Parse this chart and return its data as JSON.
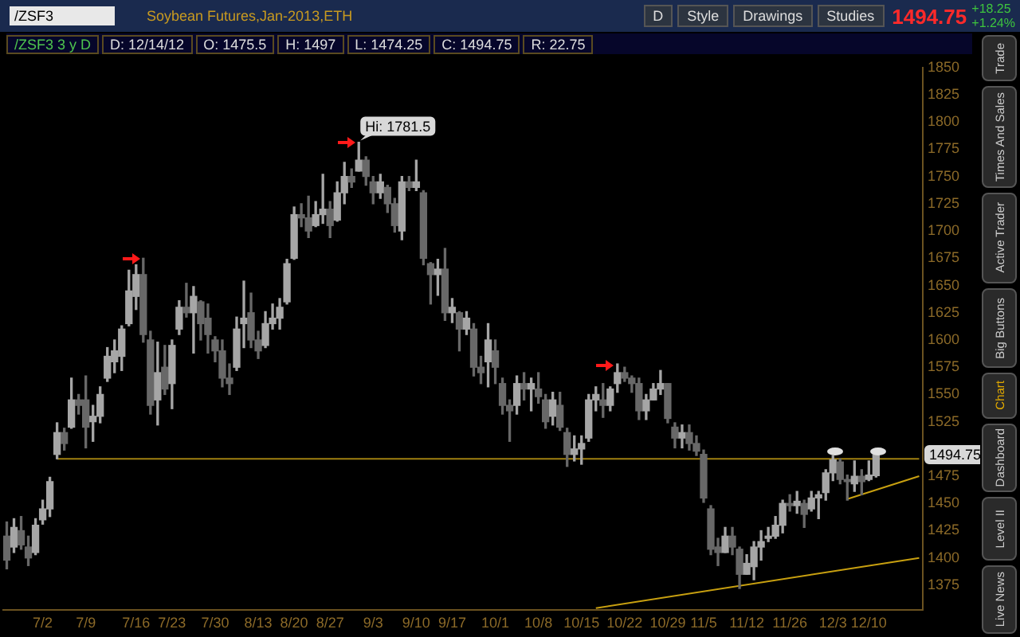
{
  "chart_data": {
    "type": "candlestick",
    "title": "Soybean Futures,Jan-2013,ETH",
    "categories": [
      null,
      null,
      null,
      null,
      null,
      "7/2",
      null,
      null,
      null,
      null,
      null,
      "7/9",
      null,
      null,
      null,
      null,
      null,
      null,
      "7/16",
      null,
      null,
      null,
      null,
      "7/23",
      null,
      null,
      null,
      null,
      null,
      "7/30",
      null,
      null,
      null,
      null,
      null,
      "8/13",
      null,
      null,
      null,
      null,
      "8/20",
      null,
      null,
      null,
      null,
      "8/27",
      null,
      null,
      null,
      null,
      null,
      "9/3",
      null,
      null,
      null,
      null,
      null,
      "9/10",
      null,
      null,
      null,
      null,
      "9/17",
      null,
      null,
      null,
      null,
      null,
      "10/1",
      null,
      null,
      null,
      null,
      null,
      "10/8",
      null,
      null,
      null,
      null,
      null,
      "10/15",
      null,
      null,
      null,
      null,
      null,
      "10/22",
      null,
      null,
      null,
      null,
      null,
      "10/29",
      null,
      null,
      null,
      null,
      "11/5",
      null,
      null,
      null,
      null,
      null,
      "11/12",
      null,
      null,
      null,
      null,
      null,
      "11/26",
      null,
      null,
      null,
      null,
      null,
      "12/3",
      null,
      null,
      null,
      null,
      "12/10",
      null,
      null,
      null,
      null,
      null,
      null,
      null
    ],
    "ohlc": [
      [
        1420,
        1433,
        1390,
        1398
      ],
      [
        1410,
        1436,
        1405,
        1428
      ],
      [
        1425,
        1438,
        1408,
        1412
      ],
      [
        1410,
        1420,
        1393,
        1400
      ],
      [
        1405,
        1436,
        1403,
        1430
      ],
      [
        1435,
        1453,
        1431,
        1445
      ],
      [
        1445,
        1474,
        1438,
        1470
      ],
      [
        1495,
        1524,
        1491,
        1515
      ],
      [
        1515,
        1519,
        1499,
        1505
      ],
      [
        1520,
        1565,
        1519,
        1545
      ],
      [
        1545,
        1550,
        1532,
        1540
      ],
      [
        1545,
        1567,
        1501,
        1520
      ],
      [
        1525,
        1540,
        1507,
        1530
      ],
      [
        1530,
        1557,
        1524,
        1550
      ],
      [
        1565,
        1593,
        1562,
        1585
      ],
      [
        1580,
        1600,
        1570,
        1590
      ],
      [
        1585,
        1613,
        1572,
        1610
      ],
      [
        1615,
        1664,
        1613,
        1645
      ],
      [
        1640,
        1669,
        1628,
        1660
      ],
      [
        1660,
        1675,
        1598,
        1605
      ],
      [
        1600,
        1608,
        1532,
        1540
      ],
      [
        1545,
        1598,
        1522,
        1570
      ],
      [
        1575,
        1595,
        1550,
        1555
      ],
      [
        1560,
        1600,
        1537,
        1595
      ],
      [
        1610,
        1636,
        1605,
        1630
      ],
      [
        1630,
        1652,
        1621,
        1625
      ],
      [
        1625,
        1649,
        1588,
        1640
      ],
      [
        1635,
        1636,
        1600,
        1615
      ],
      [
        1620,
        1633,
        1588,
        1605
      ],
      [
        1600,
        1603,
        1580,
        1590
      ],
      [
        1590,
        1600,
        1557,
        1565
      ],
      [
        1565,
        1578,
        1550,
        1560
      ],
      [
        1575,
        1621,
        1572,
        1610
      ],
      [
        1615,
        1654,
        1593,
        1620
      ],
      [
        1625,
        1643,
        1593,
        1600
      ],
      [
        1600,
        1608,
        1583,
        1590
      ],
      [
        1595,
        1626,
        1593,
        1615
      ],
      [
        1615,
        1633,
        1610,
        1620
      ],
      [
        1620,
        1638,
        1610,
        1630
      ],
      [
        1635,
        1674,
        1633,
        1670
      ],
      [
        1675,
        1722,
        1674,
        1715
      ],
      [
        1715,
        1725,
        1704,
        1712
      ],
      [
        1712,
        1732,
        1694,
        1700
      ],
      [
        1705,
        1727,
        1704,
        1715
      ],
      [
        1715,
        1752,
        1707,
        1720
      ],
      [
        1720,
        1727,
        1694,
        1705
      ],
      [
        1710,
        1745,
        1709,
        1735
      ],
      [
        1735,
        1763,
        1725,
        1750
      ],
      [
        1750,
        1757,
        1740,
        1745
      ],
      [
        1755,
        1781.5,
        1755,
        1765
      ],
      [
        1765,
        1768,
        1742,
        1750
      ],
      [
        1745,
        1750,
        1725,
        1735
      ],
      [
        1735,
        1752,
        1730,
        1745
      ],
      [
        1740,
        1742,
        1717,
        1725
      ],
      [
        1725,
        1730,
        1699,
        1705
      ],
      [
        1700,
        1750,
        1692,
        1745
      ],
      [
        1745,
        1750,
        1737,
        1740
      ],
      [
        1740,
        1765,
        1737,
        1745
      ],
      [
        1735,
        1737,
        1669,
        1675
      ],
      [
        1670,
        1671,
        1633,
        1660
      ],
      [
        1660,
        1674,
        1641,
        1665
      ],
      [
        1665,
        1684,
        1618,
        1625
      ],
      [
        1625,
        1638,
        1616,
        1630
      ],
      [
        1625,
        1626,
        1590,
        1610
      ],
      [
        1610,
        1626,
        1605,
        1620
      ],
      [
        1610,
        1615,
        1567,
        1575
      ],
      [
        1575,
        1585,
        1560,
        1570
      ],
      [
        1580,
        1615,
        1557,
        1600
      ],
      [
        1590,
        1600,
        1560,
        1575
      ],
      [
        1560,
        1565,
        1532,
        1540
      ],
      [
        1540,
        1545,
        1507,
        1535
      ],
      [
        1540,
        1567,
        1532,
        1560
      ],
      [
        1560,
        1570,
        1545,
        1555
      ],
      [
        1555,
        1565,
        1535,
        1560
      ],
      [
        1555,
        1570,
        1542,
        1548
      ],
      [
        1545,
        1550,
        1519,
        1525
      ],
      [
        1530,
        1552,
        1522,
        1545
      ],
      [
        1540,
        1552,
        1517,
        1520
      ],
      [
        1515,
        1519,
        1484,
        1495
      ],
      [
        1495,
        1512,
        1489,
        1500
      ],
      [
        1500,
        1512,
        1486,
        1505
      ],
      [
        1510,
        1550,
        1507,
        1545
      ],
      [
        1545,
        1557,
        1535,
        1550
      ],
      [
        1545,
        1560,
        1529,
        1540
      ],
      [
        1540,
        1557,
        1535,
        1555
      ],
      [
        1560,
        1578,
        1552,
        1570
      ],
      [
        1570,
        1575,
        1562,
        1565
      ],
      [
        1565,
        1567,
        1552,
        1560
      ],
      [
        1560,
        1565,
        1527,
        1535
      ],
      [
        1535,
        1550,
        1527,
        1545
      ],
      [
        1545,
        1560,
        1545,
        1555
      ],
      [
        1555,
        1572,
        1550,
        1560
      ],
      [
        1560,
        1560,
        1524,
        1528
      ],
      [
        1520,
        1524,
        1501,
        1510
      ],
      [
        1510,
        1522,
        1501,
        1515
      ],
      [
        1515,
        1522,
        1499,
        1505
      ],
      [
        1505,
        1512,
        1494,
        1498
      ],
      [
        1495,
        1499,
        1451,
        1455
      ],
      [
        1445,
        1448,
        1403,
        1408
      ],
      [
        1410,
        1418,
        1393,
        1405
      ],
      [
        1405,
        1428,
        1405,
        1420
      ],
      [
        1420,
        1428,
        1403,
        1410
      ],
      [
        1408,
        1410,
        1372,
        1385
      ],
      [
        1385,
        1403,
        1385,
        1395
      ],
      [
        1392,
        1415,
        1380,
        1410
      ],
      [
        1410,
        1425,
        1398,
        1415
      ],
      [
        1418,
        1428,
        1415,
        1420
      ],
      [
        1420,
        1438,
        1418,
        1430
      ],
      [
        1430,
        1453,
        1423,
        1450
      ],
      [
        1450,
        1458,
        1443,
        1448
      ],
      [
        1448,
        1461,
        1441,
        1452
      ],
      [
        1450,
        1453,
        1428,
        1440
      ],
      [
        1445,
        1461,
        1443,
        1455
      ],
      [
        1455,
        1461,
        1436,
        1458
      ],
      [
        1460,
        1481,
        1453,
        1478
      ],
      [
        1478,
        1494,
        1471,
        1490
      ],
      [
        1488,
        1491,
        1468,
        1472
      ],
      [
        1472,
        1476,
        1453,
        1470
      ],
      [
        1468,
        1489,
        1461,
        1475
      ],
      [
        1475,
        1481,
        1458,
        1470
      ],
      [
        1472,
        1489,
        1471,
        1476
      ],
      [
        1475.5,
        1497,
        1474.25,
        1494.75
      ],
      null,
      null,
      null,
      null,
      null,
      null
    ],
    "series": [
      {
        "type": "line",
        "color": "#a08010",
        "values": [
          null,
          null,
          null,
          null,
          null,
          null,
          null,
          1491,
          null,
          null,
          null,
          null,
          null,
          null,
          null,
          null,
          null,
          null,
          null,
          null,
          null,
          null,
          null,
          null,
          null,
          null,
          null,
          null,
          null,
          null,
          null,
          null,
          null,
          null,
          null,
          null,
          null,
          null,
          null,
          null,
          null,
          null,
          null,
          null,
          null,
          null,
          null,
          null,
          null,
          null,
          null,
          null,
          null,
          null,
          null,
          null,
          null,
          null,
          null,
          null,
          null,
          null,
          null,
          null,
          null,
          null,
          null,
          null,
          null,
          null,
          null,
          null,
          null,
          null,
          null,
          null,
          null,
          null,
          null,
          null,
          null,
          null,
          null,
          null,
          null,
          null,
          null,
          null,
          null,
          null,
          null,
          null,
          null,
          null,
          null,
          null,
          null,
          null,
          null,
          null,
          null,
          null,
          null,
          null,
          null,
          null,
          null,
          null,
          null,
          null,
          null,
          null,
          null,
          null,
          null,
          null,
          null,
          null,
          null,
          null,
          null,
          null,
          null,
          null,
          null,
          null,
          null,
          1491
        ]
      },
      {
        "type": "line",
        "color": "#c8a010",
        "values": [
          null,
          null,
          null,
          null,
          null,
          null,
          null,
          null,
          null,
          null,
          null,
          null,
          null,
          null,
          null,
          null,
          null,
          null,
          null,
          null,
          null,
          null,
          null,
          null,
          null,
          null,
          null,
          null,
          null,
          null,
          null,
          null,
          null,
          null,
          null,
          null,
          null,
          null,
          null,
          null,
          null,
          null,
          null,
          null,
          null,
          null,
          null,
          null,
          null,
          null,
          null,
          null,
          null,
          null,
          null,
          null,
          null,
          null,
          null,
          null,
          null,
          null,
          null,
          null,
          null,
          null,
          null,
          null,
          null,
          null,
          null,
          null,
          null,
          null,
          null,
          null,
          null,
          null,
          null,
          null,
          null,
          null,
          1354,
          null,
          null,
          null,
          null,
          null,
          null,
          null,
          null,
          null,
          null,
          null,
          null,
          null,
          null,
          null,
          null,
          null,
          null,
          null,
          null,
          null,
          null,
          null,
          null,
          null,
          null,
          null,
          null,
          null,
          null,
          null,
          null,
          null,
          null,
          null,
          null,
          null,
          null,
          null,
          null,
          null,
          null,
          null,
          null,
          1400
        ]
      },
      {
        "type": "line",
        "color": "#c8a010",
        "values": [
          null,
          null,
          null,
          null,
          null,
          null,
          null,
          null,
          null,
          null,
          null,
          null,
          null,
          null,
          null,
          null,
          null,
          null,
          null,
          null,
          null,
          null,
          null,
          null,
          null,
          null,
          null,
          null,
          null,
          null,
          null,
          null,
          null,
          null,
          null,
          null,
          null,
          null,
          null,
          null,
          null,
          null,
          null,
          null,
          null,
          null,
          null,
          null,
          null,
          null,
          null,
          null,
          null,
          null,
          null,
          null,
          null,
          null,
          null,
          null,
          null,
          null,
          null,
          null,
          null,
          null,
          null,
          null,
          null,
          null,
          null,
          null,
          null,
          null,
          null,
          null,
          null,
          null,
          null,
          null,
          null,
          null,
          null,
          null,
          null,
          null,
          null,
          null,
          null,
          null,
          null,
          null,
          null,
          null,
          null,
          null,
          null,
          null,
          null,
          null,
          null,
          null,
          null,
          null,
          null,
          null,
          null,
          null,
          null,
          null,
          null,
          null,
          null,
          null,
          null,
          null,
          null,
          1454,
          null,
          null,
          null,
          null,
          null,
          null,
          null,
          null,
          null,
          1475
        ]
      }
    ],
    "ylim": [
      1352,
      1850
    ],
    "yticks": [
      1375,
      1400,
      1425,
      1450,
      1475,
      1525,
      1550,
      1575,
      1600,
      1625,
      1650,
      1675,
      1700,
      1725,
      1750,
      1775,
      1800,
      1825,
      1850
    ],
    "grid": false,
    "legend": false,
    "annotations": [
      "/ZSF3",
      "D",
      "Style",
      "Drawings",
      "Studies",
      "1494.75",
      "+18.25",
      "+1.24%",
      "/ZSF3 3 y D",
      "D: 12/14/12",
      "O: 1475.5",
      "H: 1497",
      "L: 1474.25",
      "C: 1494.75",
      "R: 22.75",
      "Trade",
      "Times And Sales",
      "Active Trader",
      "Big Buttons",
      "Chart",
      "Dashboard",
      "Level II",
      "Live News",
      "Hi: 1781.5",
      {
        "text": "1494.75",
        "y": 1494.75
      }
    ]
  }
}
